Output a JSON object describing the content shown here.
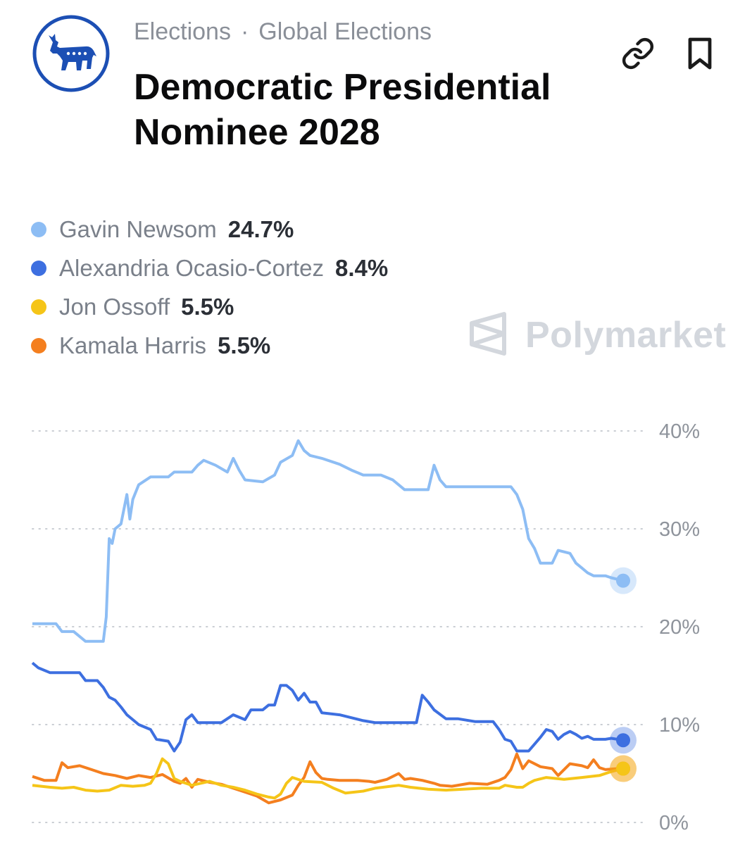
{
  "header": {
    "breadcrumb": [
      "Elections",
      "Global Elections"
    ],
    "breadcrumb_separator": "·",
    "title": "Democratic Presidential Nominee 2028",
    "logo_icon": "democratic-donkey-logo",
    "actions": [
      {
        "icon": "link-icon"
      },
      {
        "icon": "bookmark-icon"
      }
    ]
  },
  "watermark": {
    "text": "Polymarket",
    "icon": "polymarket-logo"
  },
  "legend": [
    {
      "name": "Gavin Newsom",
      "value": "24.7%",
      "color": "#8dbdf4"
    },
    {
      "name": "Alexandria Ocasio-Cortez",
      "value": "8.4%",
      "color": "#3d6fe0"
    },
    {
      "name": "Jon Ossoff",
      "value": "5.5%",
      "color": "#f5c518"
    },
    {
      "name": "Kamala Harris",
      "value": "5.5%",
      "color": "#f47f1f"
    }
  ],
  "chart_data": {
    "type": "line",
    "ylim": [
      0,
      40
    ],
    "yticks": [
      "0%",
      "10%",
      "20%",
      "30%",
      "40%"
    ],
    "ytick_values": [
      0,
      10,
      20,
      30,
      40
    ],
    "grid": true,
    "x_range": [
      0,
      100
    ],
    "series": [
      {
        "name": "Gavin Newsom",
        "color": "#8dbdf4",
        "points": [
          [
            0,
            20.3
          ],
          [
            4,
            20.3
          ],
          [
            5,
            19.5
          ],
          [
            7,
            19.5
          ],
          [
            9,
            18.5
          ],
          [
            12,
            18.5
          ],
          [
            12.5,
            21
          ],
          [
            13,
            29
          ],
          [
            13.5,
            28.5
          ],
          [
            14,
            30
          ],
          [
            15,
            30.5
          ],
          [
            15.5,
            32
          ],
          [
            16,
            33.5
          ],
          [
            16.5,
            31
          ],
          [
            17,
            33
          ],
          [
            18,
            34.5
          ],
          [
            20,
            35.3
          ],
          [
            23,
            35.3
          ],
          [
            24,
            35.8
          ],
          [
            27,
            35.8
          ],
          [
            28,
            36.5
          ],
          [
            29,
            37
          ],
          [
            31,
            36.5
          ],
          [
            33,
            35.8
          ],
          [
            34,
            37.2
          ],
          [
            35,
            36
          ],
          [
            36,
            35
          ],
          [
            39,
            34.8
          ],
          [
            41,
            35.5
          ],
          [
            42,
            36.8
          ],
          [
            44,
            37.5
          ],
          [
            45,
            39
          ],
          [
            46,
            38
          ],
          [
            47,
            37.5
          ],
          [
            49,
            37.2
          ],
          [
            52,
            36.6
          ],
          [
            54,
            36
          ],
          [
            56,
            35.5
          ],
          [
            59,
            35.5
          ],
          [
            61,
            35
          ],
          [
            63,
            34
          ],
          [
            67,
            34
          ],
          [
            68,
            36.5
          ],
          [
            69,
            35
          ],
          [
            70,
            34.3
          ],
          [
            72,
            34.3
          ],
          [
            75,
            34.3
          ],
          [
            78,
            34.3
          ],
          [
            81,
            34.3
          ],
          [
            82,
            33.5
          ],
          [
            83,
            32
          ],
          [
            84,
            29
          ],
          [
            85,
            28
          ],
          [
            86,
            26.5
          ],
          [
            88,
            26.5
          ],
          [
            89,
            27.8
          ],
          [
            91,
            27.5
          ],
          [
            92,
            26.5
          ],
          [
            93,
            26
          ],
          [
            94,
            25.5
          ],
          [
            95,
            25.2
          ],
          [
            97,
            25.2
          ],
          [
            98,
            25
          ],
          [
            100,
            24.7
          ]
        ]
      },
      {
        "name": "Alexandria Ocasio-Cortez",
        "color": "#3d6fe0",
        "points": [
          [
            0,
            16.3
          ],
          [
            1,
            15.8
          ],
          [
            3,
            15.3
          ],
          [
            8,
            15.3
          ],
          [
            9,
            14.5
          ],
          [
            11,
            14.5
          ],
          [
            12,
            13.8
          ],
          [
            13,
            12.8
          ],
          [
            14,
            12.5
          ],
          [
            15,
            11.8
          ],
          [
            16,
            11
          ],
          [
            17,
            10.5
          ],
          [
            18,
            10
          ],
          [
            20,
            9.5
          ],
          [
            21,
            8.5
          ],
          [
            23,
            8.3
          ],
          [
            24,
            7.3
          ],
          [
            25,
            8.2
          ],
          [
            26,
            10.5
          ],
          [
            27,
            11
          ],
          [
            28,
            10.2
          ],
          [
            32,
            10.2
          ],
          [
            34,
            11
          ],
          [
            36,
            10.5
          ],
          [
            37,
            11.5
          ],
          [
            39,
            11.5
          ],
          [
            40,
            12
          ],
          [
            41,
            12
          ],
          [
            42,
            14
          ],
          [
            43,
            14
          ],
          [
            44,
            13.5
          ],
          [
            45,
            12.5
          ],
          [
            46,
            13.2
          ],
          [
            47,
            12.3
          ],
          [
            48,
            12.3
          ],
          [
            49,
            11.2
          ],
          [
            52,
            11
          ],
          [
            56,
            10.4
          ],
          [
            58,
            10.2
          ],
          [
            60,
            10.2
          ],
          [
            65,
            10.2
          ],
          [
            66,
            13
          ],
          [
            67,
            12.3
          ],
          [
            68,
            11.5
          ],
          [
            70,
            10.6
          ],
          [
            72,
            10.6
          ],
          [
            75,
            10.3
          ],
          [
            78,
            10.3
          ],
          [
            79,
            9.5
          ],
          [
            80,
            8.5
          ],
          [
            81,
            8.3
          ],
          [
            82,
            7.3
          ],
          [
            84,
            7.3
          ],
          [
            86,
            8.7
          ],
          [
            87,
            9.5
          ],
          [
            88,
            9.3
          ],
          [
            89,
            8.5
          ],
          [
            90,
            9
          ],
          [
            91,
            9.3
          ],
          [
            92,
            9
          ],
          [
            93,
            8.6
          ],
          [
            94,
            8.8
          ],
          [
            95,
            8.5
          ],
          [
            97,
            8.5
          ],
          [
            98,
            8.6
          ],
          [
            100,
            8.4
          ]
        ]
      },
      {
        "name": "Jon Ossoff",
        "color": "#f5c518",
        "points": [
          [
            0,
            3.8
          ],
          [
            3,
            3.6
          ],
          [
            5,
            3.5
          ],
          [
            7,
            3.6
          ],
          [
            9,
            3.3
          ],
          [
            11,
            3.2
          ],
          [
            13,
            3.3
          ],
          [
            15,
            3.8
          ],
          [
            17,
            3.7
          ],
          [
            19,
            3.8
          ],
          [
            20,
            4
          ],
          [
            21,
            5
          ],
          [
            22,
            6.5
          ],
          [
            23,
            6
          ],
          [
            24,
            4.5
          ],
          [
            25,
            4.2
          ],
          [
            27,
            3.8
          ],
          [
            30,
            4.2
          ],
          [
            32,
            3.8
          ],
          [
            34,
            3.6
          ],
          [
            36,
            3.3
          ],
          [
            38,
            2.9
          ],
          [
            40,
            2.6
          ],
          [
            41,
            2.5
          ],
          [
            42,
            2.9
          ],
          [
            43,
            4
          ],
          [
            44,
            4.6
          ],
          [
            46,
            4.2
          ],
          [
            49,
            4.1
          ],
          [
            51,
            3.5
          ],
          [
            53,
            3
          ],
          [
            56,
            3.2
          ],
          [
            58,
            3.5
          ],
          [
            62,
            3.8
          ],
          [
            64,
            3.6
          ],
          [
            67,
            3.4
          ],
          [
            70,
            3.3
          ],
          [
            73,
            3.4
          ],
          [
            76,
            3.5
          ],
          [
            79,
            3.5
          ],
          [
            80,
            3.8
          ],
          [
            82,
            3.6
          ],
          [
            83,
            3.6
          ],
          [
            84,
            4
          ],
          [
            85,
            4.3
          ],
          [
            87,
            4.6
          ],
          [
            90,
            4.4
          ],
          [
            93,
            4.6
          ],
          [
            96,
            4.8
          ],
          [
            98,
            5.2
          ],
          [
            100,
            5.5
          ]
        ]
      },
      {
        "name": "Kamala Harris",
        "color": "#f47f1f",
        "points": [
          [
            0,
            4.7
          ],
          [
            2,
            4.3
          ],
          [
            4,
            4.3
          ],
          [
            5,
            6.1
          ],
          [
            6,
            5.6
          ],
          [
            8,
            5.8
          ],
          [
            10,
            5.4
          ],
          [
            12,
            5
          ],
          [
            14,
            4.8
          ],
          [
            16,
            4.5
          ],
          [
            18,
            4.8
          ],
          [
            20,
            4.6
          ],
          [
            22,
            4.9
          ],
          [
            24,
            4.2
          ],
          [
            25,
            4
          ],
          [
            26,
            4.5
          ],
          [
            27,
            3.6
          ],
          [
            28,
            4.4
          ],
          [
            30,
            4.1
          ],
          [
            32,
            3.9
          ],
          [
            34,
            3.5
          ],
          [
            36,
            3.1
          ],
          [
            38,
            2.7
          ],
          [
            40,
            2
          ],
          [
            42,
            2.3
          ],
          [
            44,
            2.8
          ],
          [
            45,
            3.8
          ],
          [
            46,
            4.6
          ],
          [
            47,
            6.2
          ],
          [
            48,
            5.1
          ],
          [
            49,
            4.5
          ],
          [
            50,
            4.4
          ],
          [
            52,
            4.3
          ],
          [
            55,
            4.3
          ],
          [
            57,
            4.2
          ],
          [
            58,
            4.1
          ],
          [
            60,
            4.4
          ],
          [
            62,
            5
          ],
          [
            63,
            4.4
          ],
          [
            64,
            4.5
          ],
          [
            66,
            4.3
          ],
          [
            68,
            4
          ],
          [
            69,
            3.8
          ],
          [
            71,
            3.7
          ],
          [
            74,
            4
          ],
          [
            77,
            3.9
          ],
          [
            79,
            4.3
          ],
          [
            80,
            4.6
          ],
          [
            81,
            5.4
          ],
          [
            82,
            7
          ],
          [
            83,
            5.5
          ],
          [
            84,
            6.3
          ],
          [
            86,
            5.7
          ],
          [
            88,
            5.5
          ],
          [
            89,
            4.8
          ],
          [
            90,
            5.4
          ],
          [
            91,
            6
          ],
          [
            93,
            5.8
          ],
          [
            94,
            5.6
          ],
          [
            95,
            6.4
          ],
          [
            96,
            5.6
          ],
          [
            97,
            5.4
          ],
          [
            99,
            5.5
          ],
          [
            100,
            5.5
          ]
        ]
      }
    ]
  }
}
